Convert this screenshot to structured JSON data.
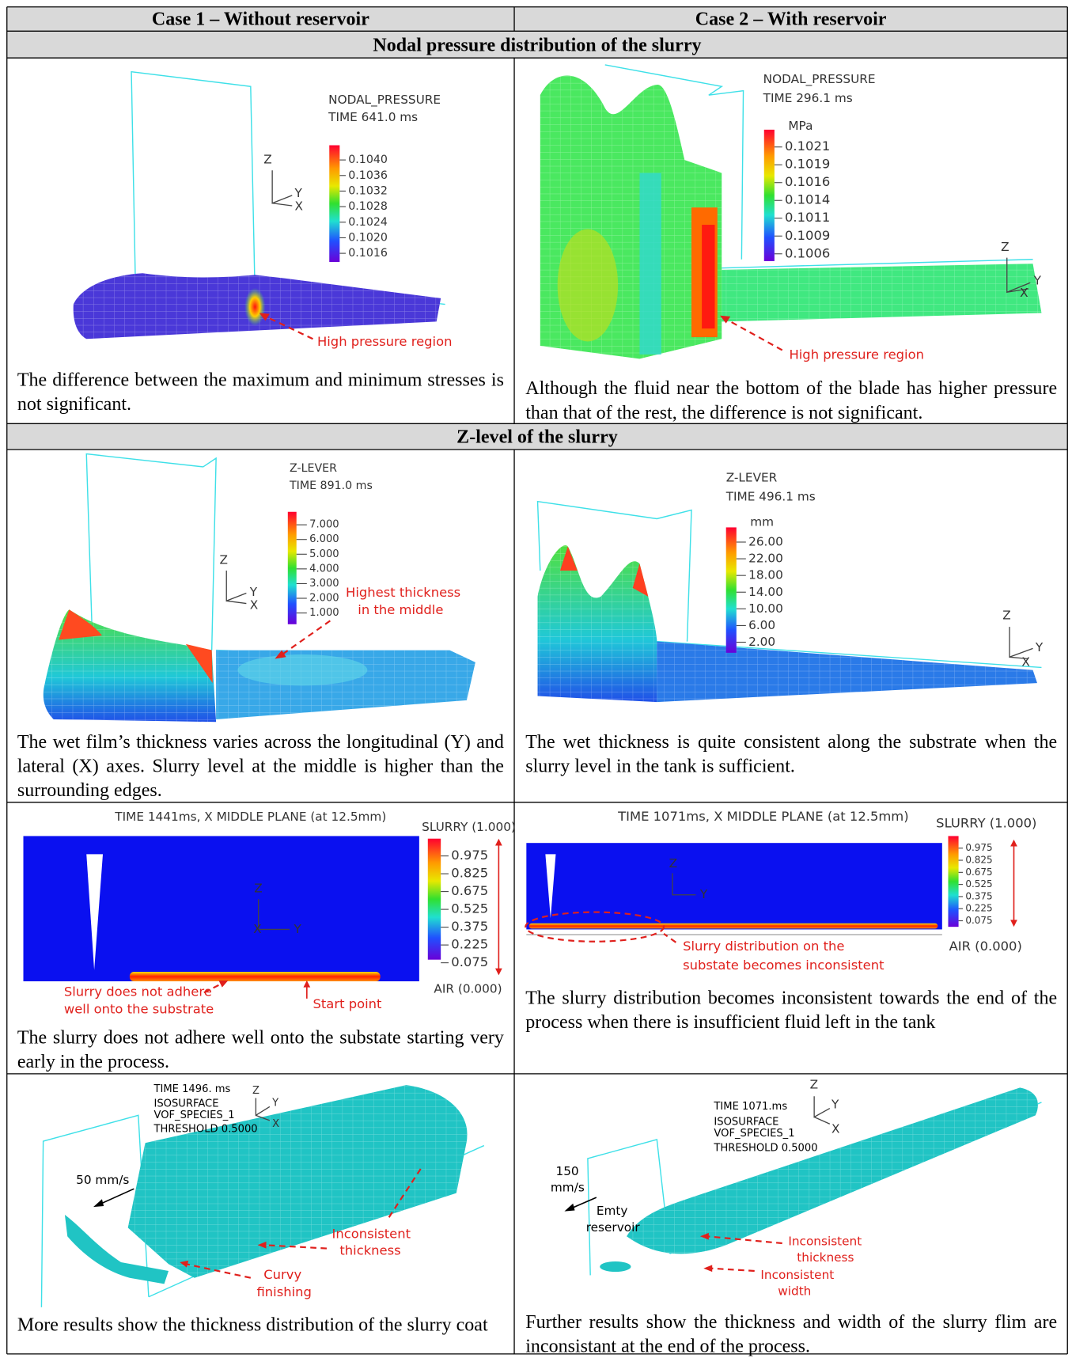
{
  "header": {
    "case_1": "Case 1 – Without reservoir",
    "case_2": "Case 2 – With reservoir"
  },
  "sections": [
    "Nodal pressure distribution of the slurry",
    "Z-level of the slurry"
  ],
  "rows": [
    {
      "cells": [
        {
          "figure": {
            "title": "NODAL_PRESSURE",
            "time": "TIME 641.0 ms",
            "legend": [
              "0.1040",
              "0.1036",
              "0.1032",
              "0.1028",
              "0.1024",
              "0.1020",
              "0.1016"
            ],
            "axes": [
              "Z",
              "Y",
              "X"
            ],
            "annotations": [
              "High pressure region"
            ]
          },
          "caption": "The difference between the maximum and minimum stresses is not significant."
        },
        {
          "figure": {
            "title": "NODAL_PRESSURE",
            "time": "TIME 296.1 ms",
            "unit": "MPa",
            "legend": [
              "0.1021",
              "0.1019",
              "0.1016",
              "0.1014",
              "0.1011",
              "0.1009",
              "0.1006"
            ],
            "axes": [
              "Z",
              "Y",
              "X"
            ],
            "annotations": [
              "High pressure region"
            ]
          },
          "caption": "Although the fluid near the bottom of the blade has higher pressure than that of the rest, the difference is not significant."
        }
      ]
    },
    {
      "cells": [
        {
          "figure": {
            "title": "Z-LEVER",
            "time": "TIME 891.0 ms",
            "legend": [
              "7.000",
              "6.000",
              "5.000",
              "4.000",
              "3.000",
              "2.000",
              "1.000"
            ],
            "axes": [
              "Z",
              "Y",
              "X"
            ],
            "annotations": [
              "Highest thickness",
              "in the middle"
            ]
          },
          "caption": "The wet film’s thickness varies across the longitudinal (Y) and lateral (X) axes. Slurry level at the middle is higher than the surrounding edges."
        },
        {
          "figure": {
            "title": "Z-LEVER",
            "time": "TIME 496.1 ms",
            "unit": "mm",
            "legend": [
              "26.00",
              "22.00",
              "18.00",
              "14.00",
              "10.00",
              "6.00",
              "2.00"
            ],
            "axes": [
              "Z",
              "Y",
              "X"
            ]
          },
          "caption": "The wet thickness is quite consistent along the substrate when the slurry level in the tank is sufficient."
        }
      ]
    },
    {
      "cells": [
        {
          "figure": {
            "title": "TIME 1441ms, X MIDDLE PLANE (at 12.5mm)",
            "top": "SLURRY (1.000)",
            "bottom": "AIR (0.000)",
            "legend": [
              "0.975",
              "0.825",
              "0.675",
              "0.525",
              "0.375",
              "0.225",
              "0.075"
            ],
            "axes": [
              "Z",
              "Y",
              "X"
            ],
            "annotations": [
              "Slurry does not adhere",
              "well onto the substrate",
              "Start point"
            ]
          },
          "caption": "The slurry does not adhere well onto the substate starting very early in the process."
        },
        {
          "figure": {
            "title": "TIME 1071ms, X MIDDLE PLANE (at 12.5mm)",
            "top": "SLURRY (1.000)",
            "bottom": "AIR (0.000)",
            "legend": [
              "0.975",
              "0.825",
              "0.675",
              "0.525",
              "0.375",
              "0.225",
              "0.075"
            ],
            "axes": [
              "Z",
              "Y"
            ],
            "annotations": [
              "Slurry distribution on the",
              "substate becomes inconsistent"
            ]
          },
          "caption": "The slurry distribution becomes inconsistent towards the end of the process when there is insufficient fluid left in the tank"
        }
      ]
    },
    {
      "cells": [
        {
          "figure": {
            "labels": [
              "TIME 1496. ms",
              "ISOSURFACE",
              "VOF_SPECIES_1",
              "THRESHOLD 0.5000"
            ],
            "axes": [
              "Z",
              "Y",
              "X"
            ],
            "speed": [
              "50 mm/s"
            ],
            "annotations": [
              "Inconsistent",
              "thickness",
              "Curvy",
              "finishing"
            ]
          },
          "caption": "More results show the thickness distribution of the slurry coat"
        },
        {
          "figure": {
            "labels": [
              "TIME 1071.ms",
              "ISOSURFACE",
              "VOF_SPECIES_1",
              "THRESHOLD 0.5000"
            ],
            "axes": [
              "Z",
              "Y",
              "X"
            ],
            "speed": [
              "150",
              "mm/s",
              "Emty",
              "reservoir"
            ],
            "annotations": [
              "Inconsistent",
              "thickness",
              "Inconsistent",
              "width"
            ]
          },
          "caption": "Further results show the thickness and width of the slurry flim are inconsistant at the end of the process."
        }
      ]
    }
  ]
}
